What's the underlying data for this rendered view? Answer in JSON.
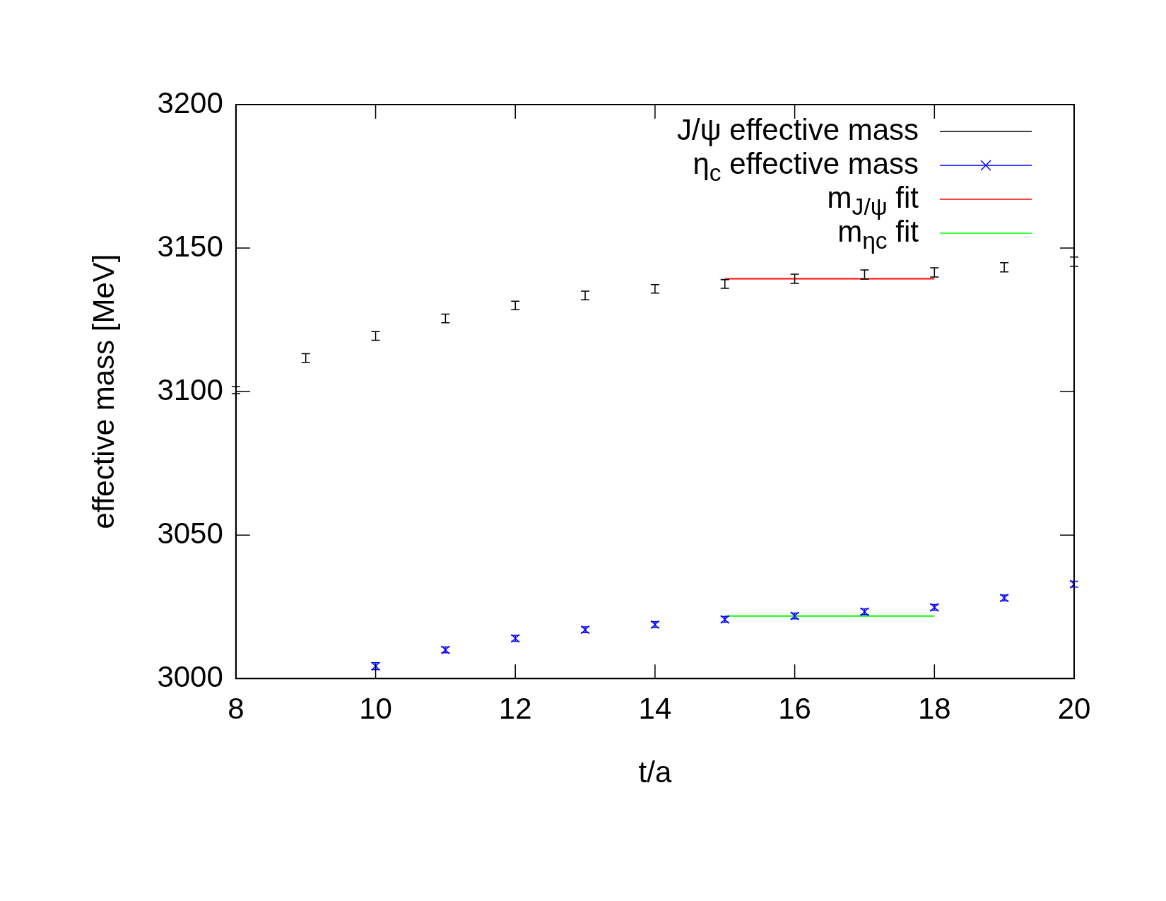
{
  "chart_data": {
    "type": "scatter",
    "xlabel": "t/a",
    "ylabel": "effective mass [MeV]",
    "xlim": [
      8,
      20
    ],
    "xticks": [
      8,
      10,
      12,
      14,
      16,
      18,
      20
    ],
    "ylim": [
      3000,
      3200
    ],
    "yticks": [
      3000,
      3050,
      3100,
      3150,
      3200
    ],
    "grid": false,
    "legend": "top right",
    "series": [
      {
        "name": "J/ψ effective mass",
        "color": "#000000",
        "x": [
          8,
          9,
          10,
          11,
          12,
          13,
          14,
          15,
          16,
          17,
          18,
          19,
          20
        ],
        "values": [
          3100.5,
          3111.7,
          3119.4,
          3125.5,
          3130,
          3133.5,
          3135.8,
          3137.5,
          3139.3,
          3140.8,
          3141.5,
          3143.3,
          3145.3
        ],
        "errors": [
          1.2,
          1.5,
          1.5,
          1.5,
          1.5,
          1.5,
          1.5,
          1.5,
          1.6,
          1.6,
          1.6,
          1.6,
          1.6
        ]
      },
      {
        "name": "η$_{c}$ effective mass",
        "color": "#0000ff",
        "marker": "cross",
        "x": [
          10,
          11,
          12,
          13,
          14,
          15,
          16,
          17,
          18,
          19,
          20
        ],
        "values": [
          3004.3,
          3010,
          3014,
          3017,
          3018.8,
          3020.6,
          3021.8,
          3023.3,
          3024.8,
          3028.1,
          3032.9
        ],
        "errors": [
          1.2,
          1,
          1,
          1,
          1,
          1,
          1,
          1,
          1,
          1,
          1
        ]
      },
      {
        "name": "m$_{J/ψ}$ fit",
        "type": "line",
        "color": "#ff0000",
        "x": [
          15,
          18
        ],
        "values": [
          3139.3,
          3139.3
        ]
      },
      {
        "name": "m$_{ηc}$ fit",
        "type": "line",
        "color": "#00ff00",
        "x": [
          15,
          18
        ],
        "values": [
          3021.8,
          3021.8
        ]
      }
    ]
  }
}
